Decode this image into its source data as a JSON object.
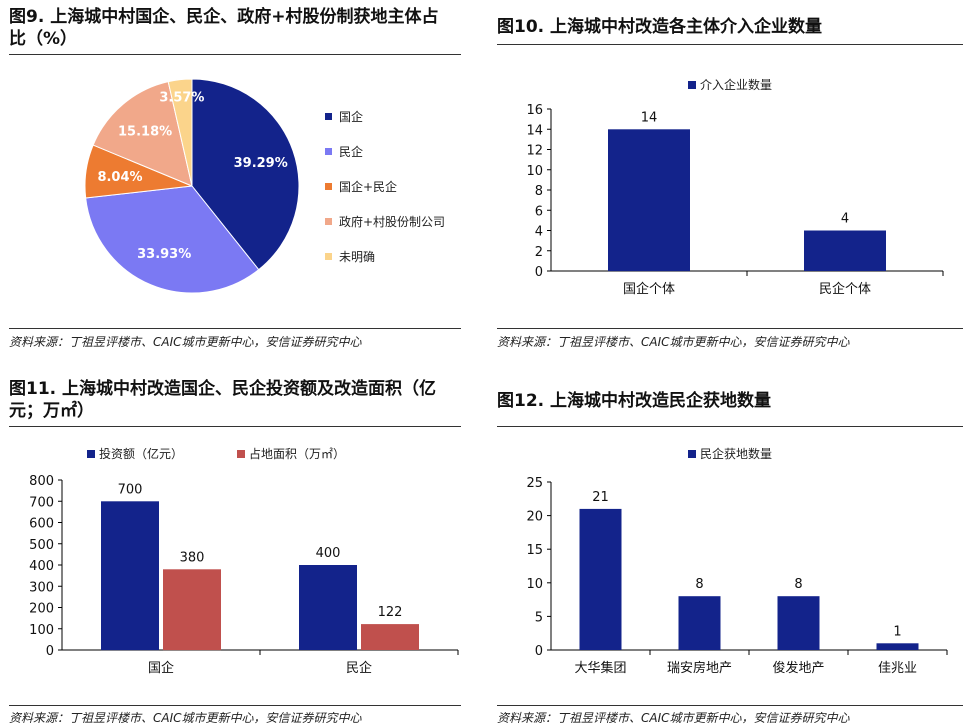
{
  "panels": {
    "p1": {
      "title": "图9. 上海城中村国企、民企、政府+村股份制获地主体占比（%）",
      "source": "资料来源：丁祖昱评楼市、CAIC城市更新中心，安信证券研究中心"
    },
    "p2": {
      "title": "图10. 上海城中村改造各主体介入企业数量",
      "source": "资料来源：丁祖昱评楼市、CAIC城市更新中心，安信证券研究中心"
    },
    "p3": {
      "title": "图11. 上海城中村改造国企、民企投资额及改造面积（亿元；万㎡）",
      "source": "资料来源：丁祖昱评楼市、CAIC城市更新中心，安信证券研究中心"
    },
    "p4": {
      "title": "图12. 上海城中村改造民企获地数量",
      "source": "资料来源：丁祖昱评楼市、CAIC城市更新中心，安信证券研究中心"
    }
  },
  "chart_data": [
    {
      "type": "pie",
      "title": "图9. 上海城中村国企、民企、政府+村股份制获地主体占比（%）",
      "legend_position": "right",
      "slices": [
        {
          "label": "国企",
          "value": 39.29,
          "display": "39.29%",
          "color": "#13238b"
        },
        {
          "label": "民企",
          "value": 33.93,
          "display": "33.93%",
          "color": "#7b79f3"
        },
        {
          "label": "国企+民企",
          "value": 8.04,
          "display": "8.04%",
          "color": "#ed7b31"
        },
        {
          "label": "政府+村股份制公司",
          "value": 15.18,
          "display": "15.18%",
          "color": "#f1a88a"
        },
        {
          "label": "未明确",
          "value": 3.57,
          "display": "3.57%",
          "color": "#fbd48b"
        }
      ]
    },
    {
      "type": "bar",
      "title": "图10. 上海城中村改造各主体介入企业数量",
      "categories": [
        "国企个体",
        "民企个体"
      ],
      "series": [
        {
          "name": "介入企业数量",
          "values": [
            14,
            4
          ],
          "color": "#13238b"
        }
      ],
      "ylim": [
        0,
        16
      ],
      "yticks": [
        0,
        2,
        4,
        6,
        8,
        10,
        12,
        14,
        16
      ],
      "legend_position": "top"
    },
    {
      "type": "bar",
      "title": "图11. 上海城中村改造国企、民企投资额及改造面积（亿元；万㎡）",
      "categories": [
        "国企",
        "民企"
      ],
      "series": [
        {
          "name": "投资额（亿元）",
          "values": [
            700,
            400
          ],
          "color": "#13238b"
        },
        {
          "name": "占地面积（万㎡）",
          "values": [
            380,
            122
          ],
          "color": "#c0504d"
        }
      ],
      "ylim": [
        0,
        800
      ],
      "yticks": [
        0,
        100,
        200,
        300,
        400,
        500,
        600,
        700,
        800
      ],
      "legend_position": "top"
    },
    {
      "type": "bar",
      "title": "图12. 上海城中村改造民企获地数量",
      "categories": [
        "大华集团",
        "瑞安房地产",
        "俊发地产",
        "佳兆业"
      ],
      "series": [
        {
          "name": "民企获地数量",
          "values": [
            21,
            8,
            8,
            1
          ],
          "color": "#13238b"
        }
      ],
      "ylim": [
        0,
        25
      ],
      "yticks": [
        0,
        5,
        10,
        15,
        20,
        25
      ],
      "legend_position": "top"
    }
  ]
}
